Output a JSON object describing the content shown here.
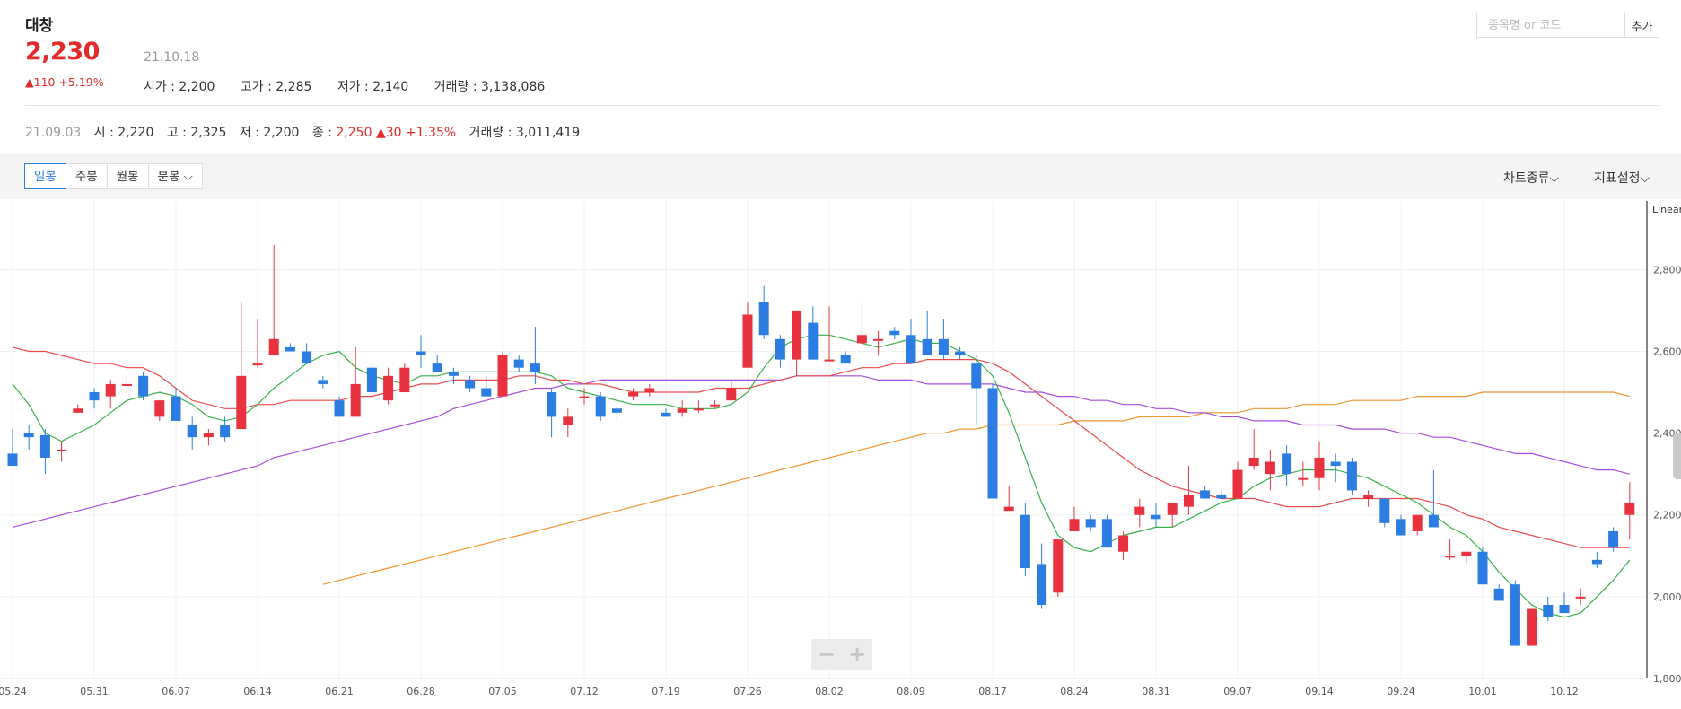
{
  "header": {
    "name": "대창",
    "price": "2,230",
    "change": "▲110 +5.19%",
    "date": "21.10.18",
    "open_label": "시가 : 2,200",
    "high_label": "고가 : 2,285",
    "low_label": "저가 : 2,140",
    "volume_label": "거래량 : 3,138,086"
  },
  "search": {
    "placeholder": "종목명 or 코드",
    "add_label": "추가"
  },
  "cursor": {
    "date": "21.09.03",
    "open": "시 : 2,220",
    "high": "고 : 2,325",
    "low": "저 : 2,200",
    "close_label": "종 : ",
    "close_value": "2,250",
    "change": "▲30 +1.35%",
    "volume": "거래량 : 3,011,419"
  },
  "tabs": [
    {
      "label": "일봉",
      "active": true
    },
    {
      "label": "주봉",
      "active": false
    },
    {
      "label": "월봉",
      "active": false
    },
    {
      "label": "분봉 ⌵",
      "active": false
    }
  ],
  "toolbar": {
    "chart_type": "차트종류⌵",
    "indicator": "지표설정⌵"
  },
  "zoom": {
    "minus": "−",
    "plus": "+"
  },
  "chart_data": {
    "type": "candlestick",
    "scale_label": "Linear",
    "ylim": [
      1800,
      2950
    ],
    "yticks": [
      "1,800",
      "2,000",
      "2,200",
      "2,400",
      "2,600",
      "2,800"
    ],
    "x_tick_labels": [
      "05.24",
      "05.31",
      "06.07",
      "06.14",
      "06.21",
      "06.28",
      "07.05",
      "07.12",
      "07.19",
      "07.26",
      "08.02",
      "08.09",
      "08.17",
      "08.24",
      "08.31",
      "09.07",
      "09.14",
      "09.24",
      "10.01",
      "10.12"
    ],
    "x_tick_index": [
      0,
      5,
      10,
      15,
      20,
      25,
      30,
      35,
      40,
      45,
      50,
      55,
      60,
      65,
      70,
      75,
      80,
      85,
      90,
      95
    ],
    "colors": {
      "up": "#e8323f",
      "down": "#2b7de1",
      "ma5": "#38b24a",
      "ma20": "#e84a4a",
      "ma60": "#a64de0",
      "ma120": "#f0952e"
    },
    "candles": [
      [
        2350,
        2410,
        2320,
        2320
      ],
      [
        2400,
        2420,
        2360,
        2390
      ],
      [
        2395,
        2410,
        2300,
        2340
      ],
      [
        2360,
        2380,
        2330,
        2360
      ],
      [
        2450,
        2470,
        2450,
        2460
      ],
      [
        2500,
        2510,
        2460,
        2480
      ],
      [
        2490,
        2530,
        2460,
        2520
      ],
      [
        2520,
        2540,
        2520,
        2520
      ],
      [
        2540,
        2550,
        2480,
        2490
      ],
      [
        2440,
        2480,
        2430,
        2480
      ],
      [
        2490,
        2510,
        2430,
        2430
      ],
      [
        2420,
        2440,
        2360,
        2390
      ],
      [
        2390,
        2410,
        2370,
        2400
      ],
      [
        2420,
        2440,
        2380,
        2390
      ],
      [
        2410,
        2720,
        2410,
        2540
      ],
      [
        2570,
        2680,
        2560,
        2570
      ],
      [
        2590,
        2860,
        2590,
        2630
      ],
      [
        2610,
        2620,
        2600,
        2600
      ],
      [
        2600,
        2620,
        2570,
        2570
      ],
      [
        2530,
        2540,
        2510,
        2520
      ],
      [
        2480,
        2490,
        2440,
        2440
      ],
      [
        2440,
        2610,
        2440,
        2520
      ],
      [
        2560,
        2570,
        2490,
        2500
      ],
      [
        2480,
        2560,
        2470,
        2540
      ],
      [
        2500,
        2570,
        2500,
        2560
      ],
      [
        2600,
        2640,
        2560,
        2590
      ],
      [
        2570,
        2590,
        2550,
        2550
      ],
      [
        2550,
        2560,
        2520,
        2540
      ],
      [
        2530,
        2540,
        2500,
        2510
      ],
      [
        2510,
        2540,
        2490,
        2490
      ],
      [
        2490,
        2600,
        2490,
        2590
      ],
      [
        2580,
        2590,
        2550,
        2560
      ],
      [
        2570,
        2660,
        2520,
        2550
      ],
      [
        2500,
        2510,
        2390,
        2440
      ],
      [
        2420,
        2460,
        2390,
        2440
      ],
      [
        2490,
        2510,
        2470,
        2490
      ],
      [
        2490,
        2500,
        2430,
        2440
      ],
      [
        2460,
        2470,
        2430,
        2450
      ],
      [
        2490,
        2510,
        2480,
        2500
      ],
      [
        2500,
        2520,
        2490,
        2510
      ],
      [
        2450,
        2460,
        2440,
        2440
      ],
      [
        2450,
        2480,
        2440,
        2460
      ],
      [
        2460,
        2480,
        2450,
        2460
      ],
      [
        2470,
        2480,
        2460,
        2470
      ],
      [
        2480,
        2530,
        2480,
        2510
      ],
      [
        2560,
        2720,
        2560,
        2690
      ],
      [
        2720,
        2760,
        2630,
        2640
      ],
      [
        2630,
        2640,
        2560,
        2580
      ],
      [
        2580,
        2700,
        2540,
        2700
      ],
      [
        2670,
        2710,
        2580,
        2580
      ],
      [
        2580,
        2710,
        2580,
        2580
      ],
      [
        2590,
        2600,
        2570,
        2570
      ],
      [
        2620,
        2720,
        2620,
        2640
      ],
      [
        2630,
        2650,
        2590,
        2630
      ],
      [
        2650,
        2660,
        2630,
        2640
      ],
      [
        2640,
        2680,
        2570,
        2570
      ],
      [
        2630,
        2700,
        2600,
        2590
      ],
      [
        2630,
        2680,
        2580,
        2590
      ],
      [
        2600,
        2610,
        2580,
        2590
      ],
      [
        2570,
        2590,
        2420,
        2510
      ],
      [
        2510,
        2520,
        2240,
        2240
      ],
      [
        2210,
        2270,
        2210,
        2220
      ],
      [
        2200,
        2230,
        2050,
        2070
      ],
      [
        2080,
        2130,
        1970,
        1980
      ],
      [
        2010,
        2140,
        2000,
        2140
      ],
      [
        2160,
        2220,
        2160,
        2190
      ],
      [
        2190,
        2200,
        2160,
        2170
      ],
      [
        2190,
        2200,
        2120,
        2120
      ],
      [
        2110,
        2160,
        2090,
        2150
      ],
      [
        2200,
        2240,
        2170,
        2220
      ],
      [
        2200,
        2230,
        2170,
        2190
      ],
      [
        2200,
        2230,
        2170,
        2230
      ],
      [
        2220,
        2320,
        2200,
        2250
      ],
      [
        2260,
        2270,
        2250,
        2240
      ],
      [
        2250,
        2260,
        2240,
        2240
      ],
      [
        2240,
        2330,
        2240,
        2310
      ],
      [
        2320,
        2410,
        2310,
        2340
      ],
      [
        2300,
        2360,
        2260,
        2330
      ],
      [
        2350,
        2370,
        2270,
        2300
      ],
      [
        2290,
        2330,
        2270,
        2290
      ],
      [
        2290,
        2380,
        2260,
        2340
      ],
      [
        2330,
        2350,
        2280,
        2320
      ],
      [
        2330,
        2340,
        2250,
        2260
      ],
      [
        2240,
        2260,
        2220,
        2250
      ],
      [
        2240,
        2240,
        2170,
        2180
      ],
      [
        2190,
        2200,
        2160,
        2150
      ],
      [
        2160,
        2200,
        2150,
        2200
      ],
      [
        2200,
        2310,
        2170,
        2170
      ],
      [
        2100,
        2140,
        2090,
        2100
      ],
      [
        2100,
        2110,
        2080,
        2110
      ],
      [
        2110,
        2120,
        2030,
        2030
      ],
      [
        2020,
        2030,
        1990,
        1990
      ],
      [
        2030,
        2040,
        1880,
        1880
      ],
      [
        1880,
        1960,
        1880,
        1970
      ],
      [
        1980,
        2000,
        1940,
        1950
      ],
      [
        1980,
        2010,
        1970,
        1960
      ],
      [
        2000,
        2020,
        1980,
        2000
      ],
      [
        2090,
        2110,
        2070,
        2080
      ],
      [
        2160,
        2170,
        2110,
        2120
      ],
      [
        2200,
        2280,
        2140,
        2230
      ]
    ],
    "ma5": [
      2520,
      2470,
      2400,
      2380,
      2400,
      2420,
      2450,
      2480,
      2490,
      2500,
      2490,
      2470,
      2440,
      2430,
      2440,
      2470,
      2510,
      2540,
      2570,
      2590,
      2600,
      2560,
      2540,
      2530,
      2520,
      2540,
      2540,
      2550,
      2550,
      2550,
      2550,
      2550,
      2550,
      2540,
      2510,
      2500,
      2490,
      2480,
      2470,
      2470,
      2470,
      2460,
      2460,
      2460,
      2470,
      2500,
      2560,
      2610,
      2630,
      2640,
      2640,
      2630,
      2620,
      2610,
      2620,
      2630,
      2620,
      2620,
      2600,
      2580,
      2540,
      2450,
      2340,
      2230,
      2150,
      2120,
      2110,
      2130,
      2150,
      2160,
      2170,
      2170,
      2190,
      2210,
      2230,
      2240,
      2270,
      2290,
      2300,
      2310,
      2310,
      2310,
      2300,
      2290,
      2270,
      2250,
      2230,
      2200,
      2170,
      2150,
      2110,
      2060,
      2020,
      1980,
      1960,
      1950,
      1960,
      2000,
      2040,
      2090
    ],
    "ma20": [
      2610,
      2600,
      2600,
      2590,
      2580,
      2570,
      2570,
      2560,
      2560,
      2540,
      2510,
      2480,
      2470,
      2460,
      2460,
      2470,
      2470,
      2480,
      2480,
      2480,
      2480,
      2490,
      2490,
      2500,
      2510,
      2520,
      2520,
      2530,
      2530,
      2530,
      2530,
      2540,
      2540,
      2530,
      2530,
      2520,
      2520,
      2510,
      2500,
      2500,
      2500,
      2500,
      2500,
      2510,
      2510,
      2510,
      2520,
      2530,
      2540,
      2540,
      2540,
      2550,
      2560,
      2560,
      2570,
      2570,
      2580,
      2580,
      2580,
      2580,
      2570,
      2550,
      2520,
      2490,
      2460,
      2430,
      2400,
      2370,
      2340,
      2310,
      2290,
      2270,
      2260,
      2250,
      2240,
      2240,
      2240,
      2230,
      2220,
      2220,
      2220,
      2230,
      2240,
      2240,
      2240,
      2240,
      2240,
      2230,
      2220,
      2200,
      2190,
      2170,
      2160,
      2150,
      2140,
      2130,
      2120,
      2120,
      2120,
      2120
    ],
    "ma60": [
      2170,
      2180,
      2190,
      2200,
      2210,
      2220,
      2230,
      2240,
      2250,
      2260,
      2270,
      2280,
      2290,
      2300,
      2310,
      2320,
      2340,
      2350,
      2360,
      2370,
      2380,
      2390,
      2400,
      2410,
      2420,
      2430,
      2440,
      2460,
      2470,
      2480,
      2490,
      2500,
      2510,
      2510,
      2520,
      2520,
      2530,
      2530,
      2530,
      2530,
      2530,
      2530,
      2530,
      2530,
      2530,
      2530,
      2530,
      2530,
      2540,
      2540,
      2540,
      2540,
      2540,
      2530,
      2530,
      2530,
      2520,
      2520,
      2520,
      2520,
      2520,
      2510,
      2500,
      2500,
      2490,
      2490,
      2480,
      2480,
      2470,
      2470,
      2460,
      2460,
      2450,
      2450,
      2440,
      2440,
      2430,
      2430,
      2430,
      2420,
      2420,
      2420,
      2410,
      2410,
      2410,
      2400,
      2400,
      2390,
      2390,
      2380,
      2370,
      2360,
      2350,
      2350,
      2340,
      2330,
      2320,
      2310,
      2310,
      2300
    ],
    "ma120": [
      null,
      null,
      null,
      null,
      null,
      null,
      null,
      null,
      null,
      null,
      null,
      null,
      null,
      null,
      null,
      null,
      null,
      null,
      null,
      2030,
      2040,
      2050,
      2060,
      2070,
      2080,
      2090,
      2100,
      2110,
      2120,
      2130,
      2140,
      2150,
      2160,
      2170,
      2180,
      2190,
      2200,
      2210,
      2220,
      2230,
      2240,
      2250,
      2260,
      2270,
      2280,
      2290,
      2300,
      2310,
      2320,
      2330,
      2340,
      2350,
      2360,
      2370,
      2380,
      2390,
      2400,
      2400,
      2410,
      2410,
      2420,
      2420,
      2420,
      2420,
      2420,
      2430,
      2430,
      2430,
      2430,
      2440,
      2440,
      2440,
      2440,
      2450,
      2450,
      2450,
      2460,
      2460,
      2460,
      2470,
      2470,
      2470,
      2480,
      2480,
      2480,
      2480,
      2490,
      2490,
      2490,
      2490,
      2500,
      2500,
      2500,
      2500,
      2500,
      2500,
      2500,
      2500,
      2500,
      2490
    ]
  }
}
